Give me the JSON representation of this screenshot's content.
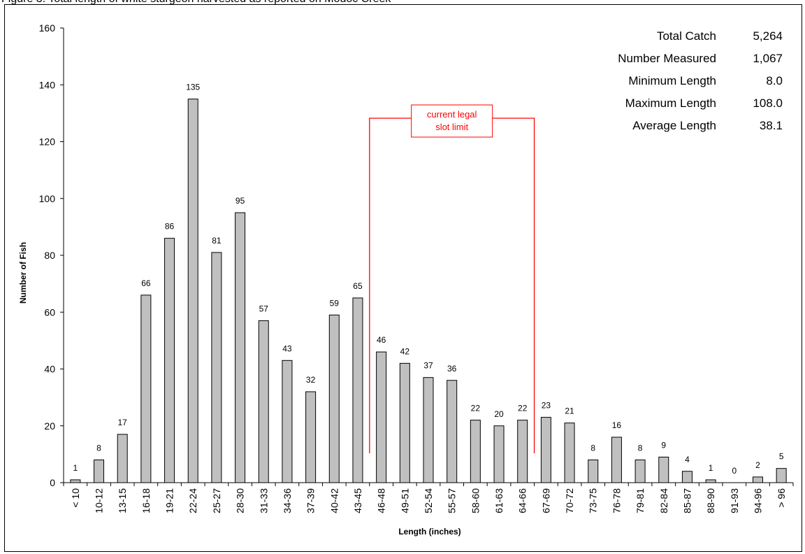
{
  "caption": "Figure 3. Total length of white sturgeon harvested as reported on Modoc Creek",
  "chart_data": {
    "type": "bar",
    "title": "",
    "xlabel": "Length (inches)",
    "ylabel": "Number of Fish",
    "ylim": [
      0,
      160
    ],
    "yticks": [
      0,
      20,
      40,
      60,
      80,
      100,
      120,
      140,
      160
    ],
    "grid": false,
    "categories": [
      "< 10",
      "10-12",
      "13-15",
      "16-18",
      "19-21",
      "22-24",
      "25-27",
      "28-30",
      "31-33",
      "34-36",
      "37-39",
      "40-42",
      "43-45",
      "46-48",
      "49-51",
      "52-54",
      "55-57",
      "58-60",
      "61-63",
      "64-66",
      "67-69",
      "70-72",
      "73-75",
      "76-78",
      "79-81",
      "82-84",
      "85-87",
      "88-90",
      "91-93",
      "94-96",
      "> 96"
    ],
    "values": [
      1,
      8,
      17,
      66,
      86,
      135,
      81,
      95,
      57,
      43,
      32,
      59,
      65,
      46,
      42,
      37,
      36,
      22,
      20,
      22,
      23,
      21,
      8,
      16,
      8,
      9,
      4,
      1,
      0,
      2,
      5
    ],
    "bar_color": "#c0c0c0",
    "annotation": {
      "text_lines": [
        "current legal",
        "slot limit"
      ],
      "color": "#ff0000",
      "from_category": "46-48",
      "to_category": "64-66"
    },
    "stats": [
      {
        "label": "Total Catch",
        "value": "5,264"
      },
      {
        "label": "Number Measured",
        "value": "1,067"
      },
      {
        "label": "Minimum Length",
        "value": "8.0"
      },
      {
        "label": "Maximum Length",
        "value": "108.0"
      },
      {
        "label": "Average Length",
        "value": "38.1"
      }
    ]
  }
}
